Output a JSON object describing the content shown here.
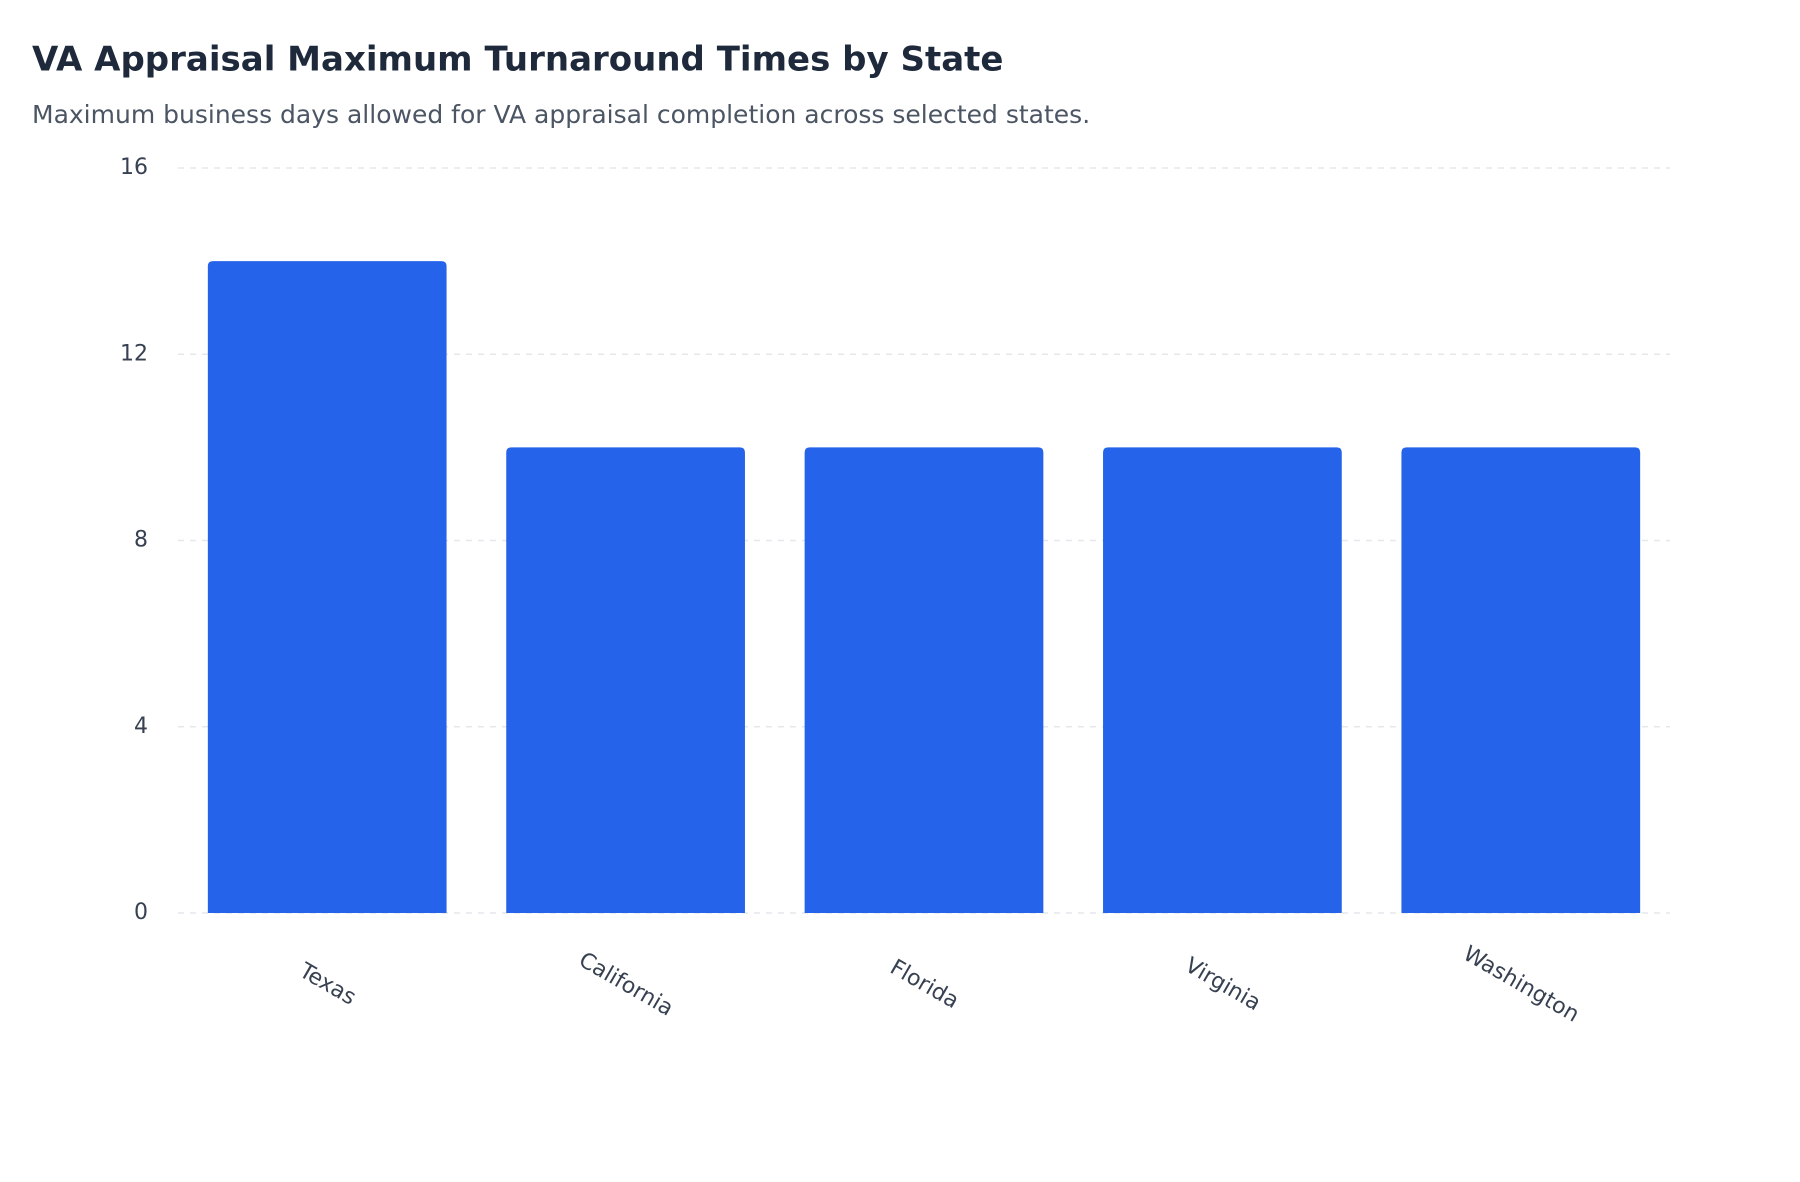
{
  "chart_data": {
    "type": "bar",
    "title": "VA Appraisal Maximum Turnaround Times by State",
    "subtitle": "Maximum business days allowed for VA appraisal completion across selected states.",
    "categories": [
      "Texas",
      "California",
      "Florida",
      "Virginia",
      "Washington"
    ],
    "values": [
      14,
      10,
      10,
      10,
      10
    ],
    "color": "#2563eb",
    "ylim": [
      0,
      16
    ],
    "yticks": [
      0,
      4,
      8,
      12,
      16
    ],
    "grid": true
  }
}
